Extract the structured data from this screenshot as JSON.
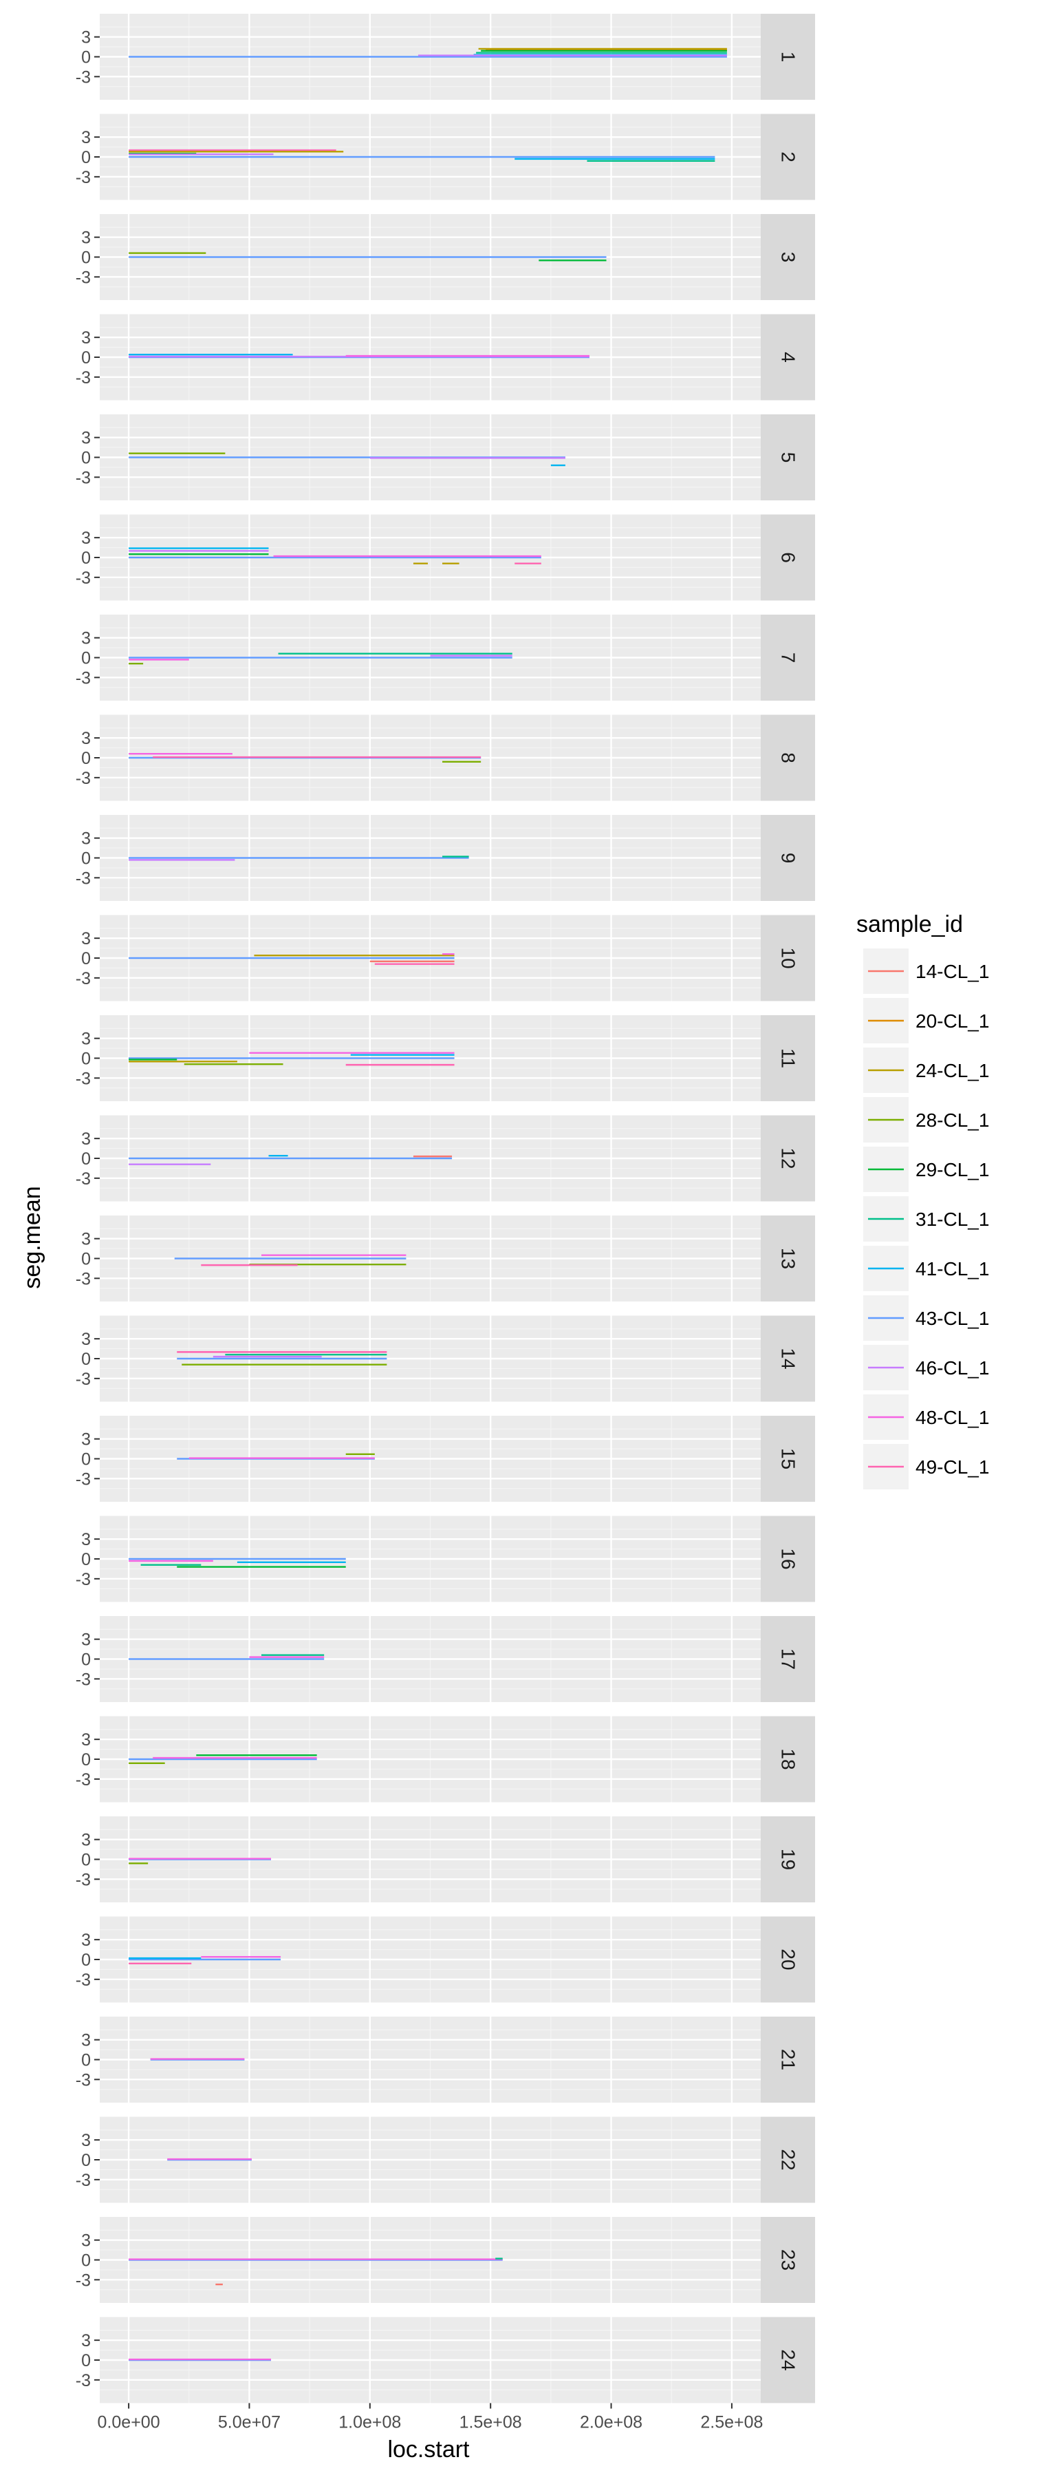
{
  "chart_data": {
    "type": "line",
    "facet_by": "chromosome",
    "xlabel": "loc.start",
    "ylabel": "seg.mean",
    "xlim": [
      -12000000.0,
      262000000.0
    ],
    "ylim": [
      -6.5,
      6.5
    ],
    "x_ticks": [
      {
        "value": 0,
        "label": "0.0e+00"
      },
      {
        "value": 50000000.0,
        "label": "5.0e+07"
      },
      {
        "value": 100000000.0,
        "label": "1.0e+08"
      },
      {
        "value": 150000000.0,
        "label": "1.5e+08"
      },
      {
        "value": 200000000.0,
        "label": "2.0e+08"
      },
      {
        "value": 250000000.0,
        "label": "2.5e+08"
      }
    ],
    "y_ticks": [
      {
        "value": 3,
        "label": "3"
      },
      {
        "value": 0,
        "label": "0"
      },
      {
        "value": -3,
        "label": "-3"
      }
    ],
    "legend": {
      "title": "sample_id",
      "entries": [
        {
          "name": "14-CL_1",
          "color": "#F8766D"
        },
        {
          "name": "20-CL_1",
          "color": "#DE8C00"
        },
        {
          "name": "24-CL_1",
          "color": "#B79F00"
        },
        {
          "name": "28-CL_1",
          "color": "#7CAE00"
        },
        {
          "name": "29-CL_1",
          "color": "#00BA38"
        },
        {
          "name": "31-CL_1",
          "color": "#00C08B"
        },
        {
          "name": "41-CL_1",
          "color": "#00B4F0"
        },
        {
          "name": "43-CL_1",
          "color": "#619CFF"
        },
        {
          "name": "46-CL_1",
          "color": "#C77CFF"
        },
        {
          "name": "48-CL_1",
          "color": "#F564E3"
        },
        {
          "name": "49-CL_1",
          "color": "#FF64B0"
        }
      ]
    },
    "facets": [
      {
        "label": "1",
        "segments": [
          {
            "s": 7,
            "x0": 0,
            "x1": 248000000.0,
            "y": 0
          },
          {
            "s": 2,
            "x0": 145000000.0,
            "x1": 248000000.0,
            "y": 1.2
          },
          {
            "s": 1,
            "x0": 148000000.0,
            "x1": 248000000.0,
            "y": 1.0
          },
          {
            "s": 4,
            "x0": 146000000.0,
            "x1": 248000000.0,
            "y": 0.9
          },
          {
            "s": 5,
            "x0": 144000000.0,
            "x1": 248000000.0,
            "y": 0.6
          },
          {
            "s": 6,
            "x0": 143000000.0,
            "x1": 248000000.0,
            "y": 0.3
          },
          {
            "s": 8,
            "x0": 120000000.0,
            "x1": 248000000.0,
            "y": 0.2
          }
        ]
      },
      {
        "label": "2",
        "segments": [
          {
            "s": 7,
            "x0": 0,
            "x1": 243000000.0,
            "y": 0
          },
          {
            "s": 10,
            "x0": 0,
            "x1": 86000000.0,
            "y": 1.0
          },
          {
            "s": 2,
            "x0": 0,
            "x1": 89000000.0,
            "y": 0.8
          },
          {
            "s": 4,
            "x0": 0,
            "x1": 28000000.0,
            "y": 0.5
          },
          {
            "s": 8,
            "x0": 0,
            "x1": 60000000.0,
            "y": 0.4
          },
          {
            "s": 5,
            "x0": 190000000.0,
            "x1": 243000000.0,
            "y": -0.6
          },
          {
            "s": 6,
            "x0": 160000000.0,
            "x1": 243000000.0,
            "y": -0.3
          }
        ]
      },
      {
        "label": "3",
        "segments": [
          {
            "s": 7,
            "x0": 0,
            "x1": 198000000.0,
            "y": 0
          },
          {
            "s": 3,
            "x0": 0,
            "x1": 32000000.0,
            "y": 0.6
          },
          {
            "s": 4,
            "x0": 170000000.0,
            "x1": 198000000.0,
            "y": -0.5
          }
        ]
      },
      {
        "label": "4",
        "segments": [
          {
            "s": 7,
            "x0": 0,
            "x1": 191000000.0,
            "y": 0
          },
          {
            "s": 6,
            "x0": 0,
            "x1": 68000000.0,
            "y": 0.4
          },
          {
            "s": 8,
            "x0": 0,
            "x1": 191000000.0,
            "y": 0.1
          },
          {
            "s": 9,
            "x0": 90000000.0,
            "x1": 191000000.0,
            "y": 0.2
          }
        ]
      },
      {
        "label": "5",
        "segments": [
          {
            "s": 7,
            "x0": 0,
            "x1": 181000000.0,
            "y": 0
          },
          {
            "s": 3,
            "x0": 0,
            "x1": 40000000.0,
            "y": 0.6
          },
          {
            "s": 6,
            "x0": 175000000.0,
            "x1": 181000000.0,
            "y": -1.2
          },
          {
            "s": 8,
            "x0": 100000000.0,
            "x1": 181000000.0,
            "y": -0.1
          }
        ]
      },
      {
        "label": "6",
        "segments": [
          {
            "s": 7,
            "x0": 0,
            "x1": 171000000.0,
            "y": 0
          },
          {
            "s": 6,
            "x0": 0,
            "x1": 58000000.0,
            "y": 1.4
          },
          {
            "s": 8,
            "x0": 0,
            "x1": 58000000.0,
            "y": 1.0
          },
          {
            "s": 4,
            "x0": 0,
            "x1": 58000000.0,
            "y": 0.5
          },
          {
            "s": 9,
            "x0": 60000000.0,
            "x1": 171000000.0,
            "y": 0.2
          },
          {
            "s": 2,
            "x0": 118000000.0,
            "x1": 124000000.0,
            "y": -0.9
          },
          {
            "s": 2,
            "x0": 130000000.0,
            "x1": 137000000.0,
            "y": -0.9
          },
          {
            "s": 10,
            "x0": 160000000.0,
            "x1": 171000000.0,
            "y": -0.9
          }
        ]
      },
      {
        "label": "7",
        "segments": [
          {
            "s": 7,
            "x0": 0,
            "x1": 159000000.0,
            "y": 0
          },
          {
            "s": 5,
            "x0": 62000000.0,
            "x1": 159000000.0,
            "y": 0.6
          },
          {
            "s": 3,
            "x0": 0,
            "x1": 6000000.0,
            "y": -0.9
          },
          {
            "s": 9,
            "x0": 0,
            "x1": 25000000.0,
            "y": -0.3
          },
          {
            "s": 8,
            "x0": 125000000.0,
            "x1": 159000000.0,
            "y": 0.3
          }
        ]
      },
      {
        "label": "8",
        "segments": [
          {
            "s": 7,
            "x0": 0,
            "x1": 146000000.0,
            "y": 0
          },
          {
            "s": 9,
            "x0": 0,
            "x1": 43000000.0,
            "y": 0.6
          },
          {
            "s": 3,
            "x0": 130000000.0,
            "x1": 146000000.0,
            "y": -0.6
          },
          {
            "s": 10,
            "x0": 10000000.0,
            "x1": 146000000.0,
            "y": 0.1
          }
        ]
      },
      {
        "label": "9",
        "segments": [
          {
            "s": 7,
            "x0": 0,
            "x1": 141000000.0,
            "y": 0
          },
          {
            "s": 8,
            "x0": 0,
            "x1": 44000000.0,
            "y": -0.3
          },
          {
            "s": 5,
            "x0": 130000000.0,
            "x1": 141000000.0,
            "y": 0.2
          }
        ]
      },
      {
        "label": "10",
        "segments": [
          {
            "s": 7,
            "x0": 0,
            "x1": 135000000.0,
            "y": 0
          },
          {
            "s": 2,
            "x0": 52000000.0,
            "x1": 135000000.0,
            "y": 0.4
          },
          {
            "s": 10,
            "x0": 102000000.0,
            "x1": 135000000.0,
            "y": -0.9
          },
          {
            "s": 0,
            "x0": 100000000.0,
            "x1": 135000000.0,
            "y": -0.5
          },
          {
            "s": 9,
            "x0": 130000000.0,
            "x1": 135000000.0,
            "y": 0.6
          }
        ]
      },
      {
        "label": "11",
        "segments": [
          {
            "s": 7,
            "x0": 0,
            "x1": 135000000.0,
            "y": 0
          },
          {
            "s": 9,
            "x0": 50000000.0,
            "x1": 135000000.0,
            "y": 0.8
          },
          {
            "s": 6,
            "x0": 92000000.0,
            "x1": 135000000.0,
            "y": 0.5
          },
          {
            "s": 2,
            "x0": 0,
            "x1": 45000000.0,
            "y": -0.5
          },
          {
            "s": 3,
            "x0": 23000000.0,
            "x1": 64000000.0,
            "y": -0.9
          },
          {
            "s": 10,
            "x0": 90000000.0,
            "x1": 135000000.0,
            "y": -1.0
          },
          {
            "s": 4,
            "x0": 0,
            "x1": 20000000.0,
            "y": -0.2
          }
        ]
      },
      {
        "label": "12",
        "segments": [
          {
            "s": 7,
            "x0": 0,
            "x1": 134000000.0,
            "y": 0
          },
          {
            "s": 8,
            "x0": 0,
            "x1": 34000000.0,
            "y": -0.9
          },
          {
            "s": 6,
            "x0": 58000000.0,
            "x1": 66000000.0,
            "y": 0.4
          },
          {
            "s": 0,
            "x0": 118000000.0,
            "x1": 134000000.0,
            "y": 0.3
          }
        ]
      },
      {
        "label": "13",
        "segments": [
          {
            "s": 7,
            "x0": 19000000.0,
            "x1": 115000000.0,
            "y": 0
          },
          {
            "s": 9,
            "x0": 55000000.0,
            "x1": 115000000.0,
            "y": 0.5
          },
          {
            "s": 3,
            "x0": 50000000.0,
            "x1": 115000000.0,
            "y": -0.9
          },
          {
            "s": 10,
            "x0": 30000000.0,
            "x1": 70000000.0,
            "y": -1.0
          }
        ]
      },
      {
        "label": "14",
        "segments": [
          {
            "s": 7,
            "x0": 20000000.0,
            "x1": 107000000.0,
            "y": 0
          },
          {
            "s": 10,
            "x0": 20000000.0,
            "x1": 107000000.0,
            "y": 1.0
          },
          {
            "s": 5,
            "x0": 40000000.0,
            "x1": 107000000.0,
            "y": 0.6
          },
          {
            "s": 3,
            "x0": 22000000.0,
            "x1": 107000000.0,
            "y": -0.9
          },
          {
            "s": 8,
            "x0": 35000000.0,
            "x1": 80000000.0,
            "y": 0.3
          }
        ]
      },
      {
        "label": "15",
        "segments": [
          {
            "s": 7,
            "x0": 20000000.0,
            "x1": 102000000.0,
            "y": 0
          },
          {
            "s": 3,
            "x0": 90000000.0,
            "x1": 102000000.0,
            "y": 0.7
          },
          {
            "s": 9,
            "x0": 25000000.0,
            "x1": 102000000.0,
            "y": 0.1
          }
        ]
      },
      {
        "label": "16",
        "segments": [
          {
            "s": 7,
            "x0": 0,
            "x1": 90000000.0,
            "y": 0
          },
          {
            "s": 9,
            "x0": 0,
            "x1": 35000000.0,
            "y": -0.3
          },
          {
            "s": 4,
            "x0": 20000000.0,
            "x1": 90000000.0,
            "y": -1.2
          },
          {
            "s": 6,
            "x0": 45000000.0,
            "x1": 90000000.0,
            "y": -0.5
          },
          {
            "s": 5,
            "x0": 5000000.0,
            "x1": 30000000.0,
            "y": -0.9
          }
        ]
      },
      {
        "label": "17",
        "segments": [
          {
            "s": 7,
            "x0": 0,
            "x1": 81000000.0,
            "y": 0
          },
          {
            "s": 5,
            "x0": 55000000.0,
            "x1": 81000000.0,
            "y": 0.6
          },
          {
            "s": 9,
            "x0": 50000000.0,
            "x1": 81000000.0,
            "y": 0.3
          }
        ]
      },
      {
        "label": "18",
        "segments": [
          {
            "s": 7,
            "x0": 0,
            "x1": 78000000.0,
            "y": 0
          },
          {
            "s": 4,
            "x0": 28000000.0,
            "x1": 78000000.0,
            "y": 0.6
          },
          {
            "s": 3,
            "x0": 0,
            "x1": 15000000.0,
            "y": -0.6
          },
          {
            "s": 9,
            "x0": 10000000.0,
            "x1": 78000000.0,
            "y": 0.2
          }
        ]
      },
      {
        "label": "19",
        "segments": [
          {
            "s": 7,
            "x0": 0,
            "x1": 59000000.0,
            "y": 0
          },
          {
            "s": 3,
            "x0": 0,
            "x1": 8000000.0,
            "y": -0.6
          },
          {
            "s": 9,
            "x0": 0,
            "x1": 59000000.0,
            "y": 0.1
          }
        ]
      },
      {
        "label": "20",
        "segments": [
          {
            "s": 7,
            "x0": 0,
            "x1": 63000000.0,
            "y": 0
          },
          {
            "s": 6,
            "x0": 0,
            "x1": 30000000.0,
            "y": 0.2
          },
          {
            "s": 10,
            "x0": 0,
            "x1": 26000000.0,
            "y": -0.6
          },
          {
            "s": 9,
            "x0": 30000000.0,
            "x1": 63000000.0,
            "y": 0.4
          }
        ]
      },
      {
        "label": "21",
        "segments": [
          {
            "s": 7,
            "x0": 9000000.0,
            "x1": 48000000.0,
            "y": 0
          },
          {
            "s": 9,
            "x0": 9000000.0,
            "x1": 48000000.0,
            "y": 0.1
          }
        ]
      },
      {
        "label": "22",
        "segments": [
          {
            "s": 7,
            "x0": 16000000.0,
            "x1": 51000000.0,
            "y": 0
          },
          {
            "s": 9,
            "x0": 16000000.0,
            "x1": 51000000.0,
            "y": 0.1
          }
        ]
      },
      {
        "label": "23",
        "segments": [
          {
            "s": 7,
            "x0": 0,
            "x1": 155000000.0,
            "y": 0
          },
          {
            "s": 9,
            "x0": 0,
            "x1": 155000000.0,
            "y": 0.1
          },
          {
            "s": 0,
            "x0": 36000000.0,
            "x1": 39000000.0,
            "y": -3.7
          },
          {
            "s": 5,
            "x0": 152000000.0,
            "x1": 155000000.0,
            "y": 0.2
          }
        ]
      },
      {
        "label": "24",
        "segments": [
          {
            "s": 7,
            "x0": 0,
            "x1": 59000000.0,
            "y": 0
          },
          {
            "s": 9,
            "x0": 0,
            "x1": 59000000.0,
            "y": 0.1
          }
        ]
      }
    ]
  }
}
